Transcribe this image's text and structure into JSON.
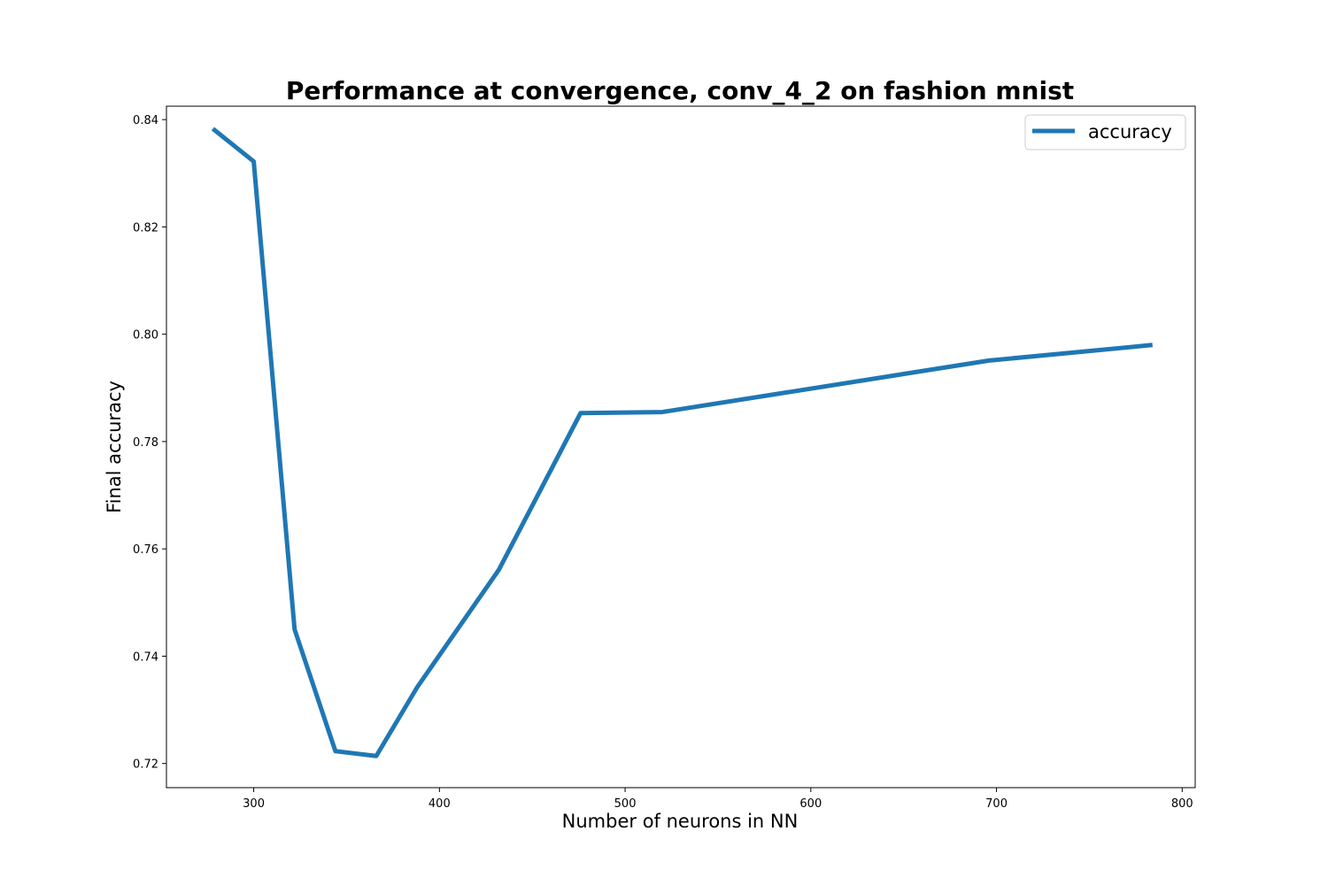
{
  "chart_data": {
    "type": "line",
    "title": "Performance at convergence, conv_4_2 on fashion mnist",
    "xlabel": "Number of neurons in NN",
    "ylabel": "Final accuracy",
    "xlim": [
      253,
      807
    ],
    "ylim": [
      0.7155,
      0.8425
    ],
    "xticks": [
      300,
      400,
      500,
      600,
      700,
      800
    ],
    "yticks": [
      0.72,
      0.74,
      0.76,
      0.78,
      0.8,
      0.82,
      0.84
    ],
    "xtick_labels": [
      "300",
      "400",
      "500",
      "600",
      "700",
      "800"
    ],
    "ytick_labels": [
      "0.72",
      "0.74",
      "0.76",
      "0.78",
      "0.80",
      "0.82",
      "0.84"
    ],
    "grid": false,
    "legend_position": "top-right",
    "series": [
      {
        "name": "accuracy",
        "color": "#1f77b4",
        "x": [
          278,
          300,
          322,
          344,
          366,
          388,
          432,
          476,
          520,
          696,
          784
        ],
        "y": [
          0.8383,
          0.8322,
          0.745,
          0.7223,
          0.7214,
          0.7342,
          0.7561,
          0.7853,
          0.7855,
          0.7951,
          0.798
        ]
      }
    ]
  }
}
